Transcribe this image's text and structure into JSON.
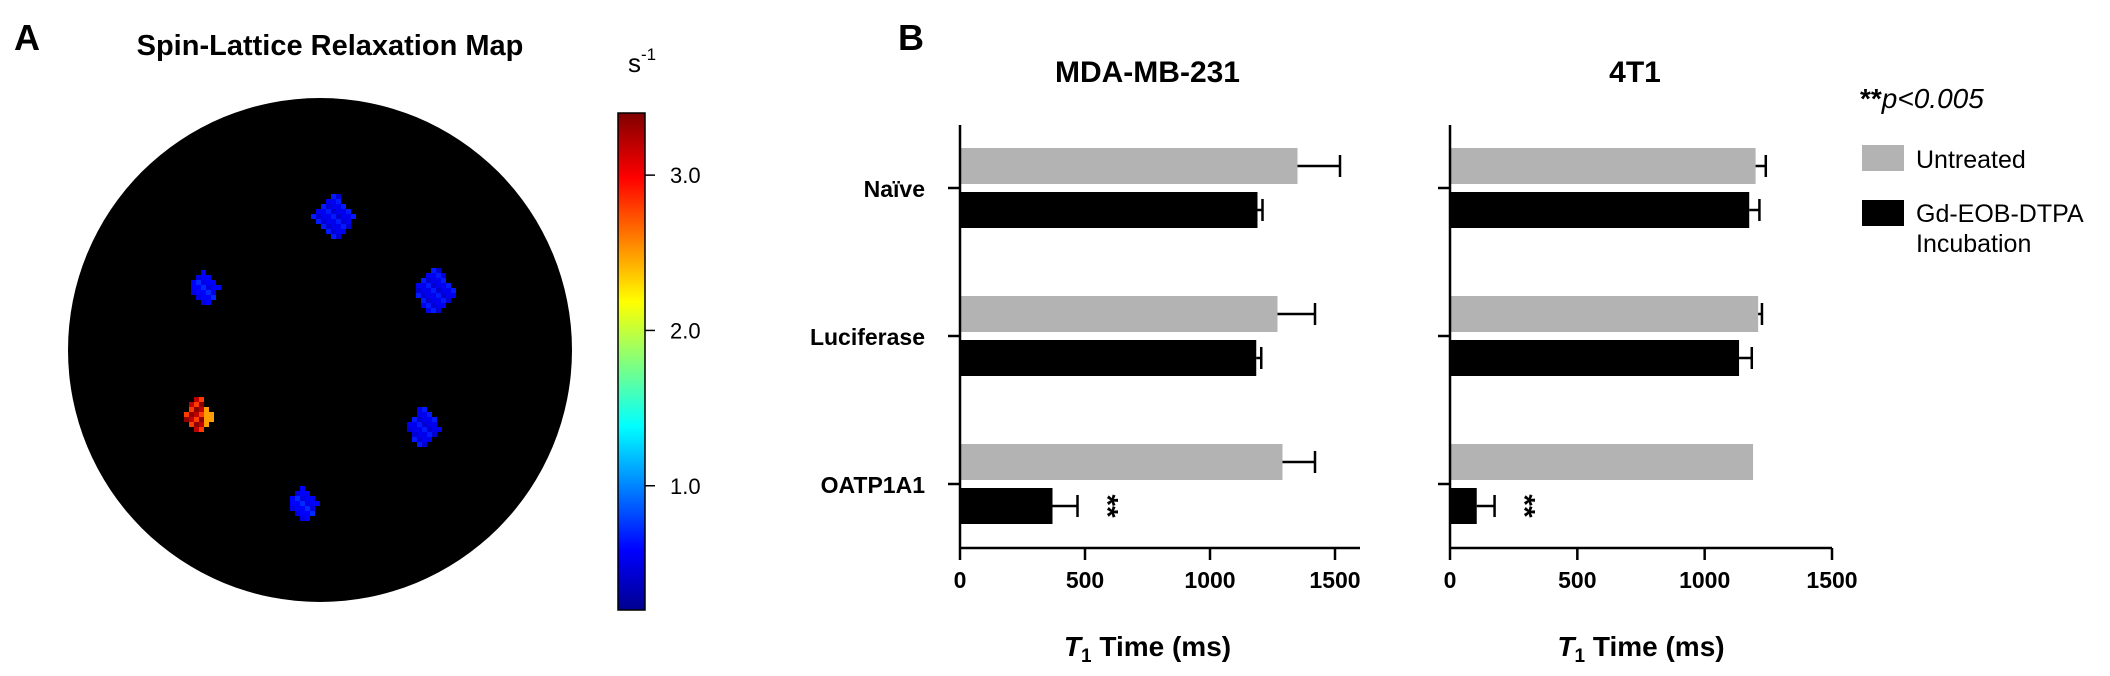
{
  "panel_a": {
    "letter": "A",
    "title": "Spin-Lattice Relaxation Map",
    "colorbar": {
      "unit_base": "s",
      "unit_exp": "-1",
      "range": [
        0.2,
        3.4
      ],
      "ticks": [
        {
          "value": 1.0,
          "label": "1.0"
        },
        {
          "value": 2.0,
          "label": "2.0"
        },
        {
          "value": 3.0,
          "label": "3.0"
        }
      ]
    },
    "spots": [
      {
        "value": 0.55
      },
      {
        "value": 0.6
      },
      {
        "value": 0.55
      },
      {
        "value": 3.2
      },
      {
        "value": 0.55
      },
      {
        "value": 0.6
      }
    ]
  },
  "panel_b": {
    "letter": "B",
    "significance_note": "p<0.005",
    "significance_stars": "**",
    "legend": [
      {
        "label": "Untreated",
        "color": "#b3b3b3"
      },
      {
        "label_lines": [
          "Gd-EOB-DTPA",
          "Incubation"
        ],
        "color": "#000000"
      }
    ]
  },
  "chart_data": [
    {
      "type": "bar",
      "orientation": "horizontal",
      "title": "MDA-MB-231",
      "categories": [
        "Naïve",
        "Luciferase",
        "OATP1A1"
      ],
      "xlabel": {
        "italic": "T",
        "sub": "1",
        "rest": " Time (ms)"
      },
      "xlim": [
        0,
        1600
      ],
      "xticks": [
        0,
        500,
        1000,
        1500
      ],
      "series": [
        {
          "name": "Untreated",
          "color": "#b3b3b3",
          "values": [
            1350,
            1270,
            1290
          ],
          "errors": [
            170,
            150,
            130
          ]
        },
        {
          "name": "Gd-EOB-DTPA Incubation",
          "color": "#000000",
          "values": [
            1190,
            1185,
            370
          ],
          "errors": [
            20,
            20,
            100
          ]
        }
      ],
      "annotations": [
        {
          "category": "OATP1A1",
          "series": "Gd-EOB-DTPA Incubation",
          "text": "**"
        }
      ]
    },
    {
      "type": "bar",
      "orientation": "horizontal",
      "title": "4T1",
      "categories": [
        "Naïve",
        "Luciferase",
        "OATP1A1"
      ],
      "xlabel": {
        "italic": "T",
        "sub": "1",
        "rest": " Time (ms)"
      },
      "xlim": [
        0,
        1500
      ],
      "xticks": [
        0,
        500,
        1000,
        1500
      ],
      "series": [
        {
          "name": "Untreated",
          "color": "#b3b3b3",
          "values": [
            1200,
            1210,
            1190
          ],
          "errors": [
            40,
            15,
            0
          ]
        },
        {
          "name": "Gd-EOB-DTPA Incubation",
          "color": "#000000",
          "values": [
            1175,
            1135,
            105
          ],
          "errors": [
            40,
            50,
            70
          ]
        }
      ],
      "annotations": [
        {
          "category": "OATP1A1",
          "series": "Gd-EOB-DTPA Incubation",
          "text": "**"
        }
      ]
    }
  ]
}
